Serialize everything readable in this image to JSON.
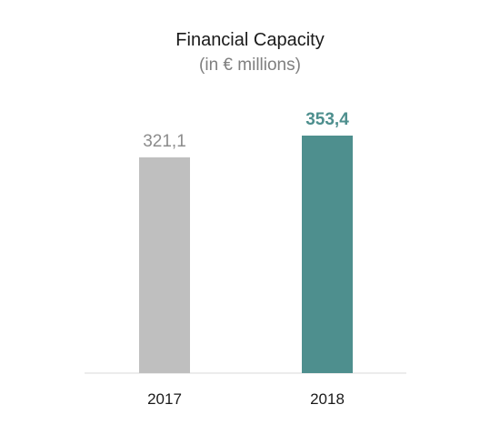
{
  "chart_data": {
    "type": "bar",
    "title": "Financial Capacity",
    "subtitle": "(in € millions)",
    "categories": [
      "2017",
      "2018"
    ],
    "values": [
      321.1,
      353.4
    ],
    "value_labels": [
      "321,1",
      "353,4"
    ],
    "colors": [
      "#bfbfbf",
      "#4e8f8e"
    ],
    "label_colors": [
      "#8c8c8c",
      "#4e8f8e"
    ],
    "label_bold": [
      false,
      true
    ],
    "ylim": [
      0,
      353.4
    ],
    "grid": false
  }
}
